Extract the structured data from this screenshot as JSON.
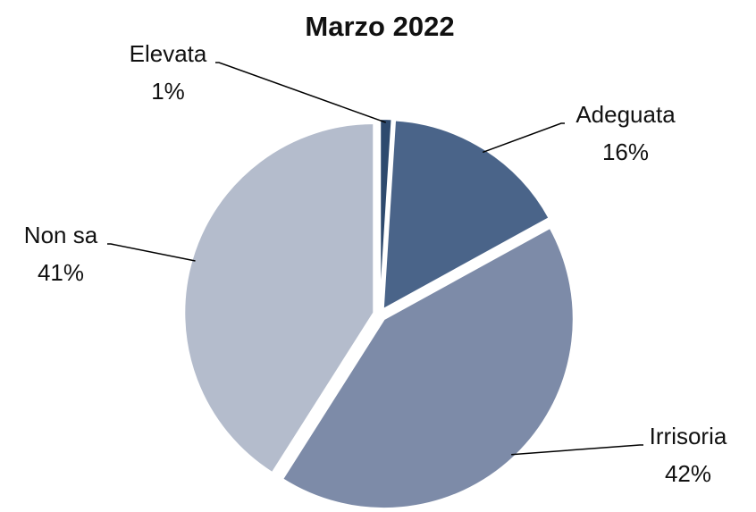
{
  "chart_data": {
    "type": "pie",
    "title": "Marzo 2022",
    "categories": [
      "Elevata",
      "Adeguata",
      "Irrisoria",
      "Non sa"
    ],
    "values": [
      1,
      16,
      42,
      41
    ],
    "value_labels": [
      "1%",
      "16%",
      "42%",
      "41%"
    ],
    "colors": [
      "#2e4a6e",
      "#4a6489",
      "#7d8ba8",
      "#b4bccc"
    ]
  }
}
